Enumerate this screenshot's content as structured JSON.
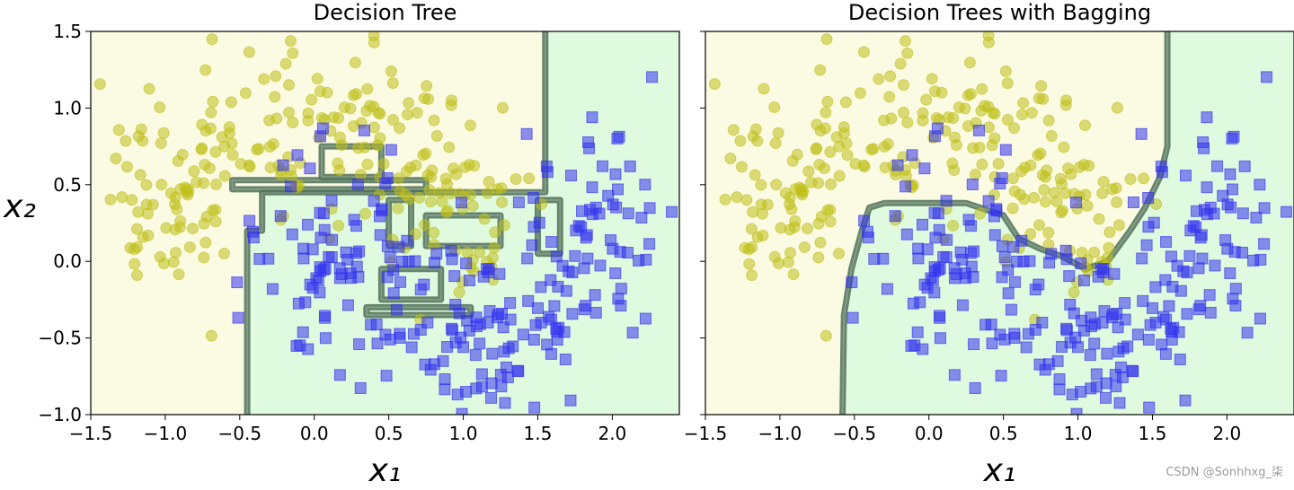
{
  "chart_data": [
    {
      "type": "scatter",
      "title": "Decision Tree",
      "xlabel": "x₁",
      "ylabel": "x₂",
      "xlim": [
        -1.5,
        2.45
      ],
      "ylim": [
        -1.0,
        1.5
      ],
      "xticks": [
        "−1.5",
        "−1.0",
        "−0.5",
        "0.0",
        "0.5",
        "1.0",
        "1.5",
        "2.0"
      ],
      "yticks": [
        "−1.0",
        "−0.5",
        "0.0",
        "0.5",
        "1.0",
        "1.5"
      ],
      "background_colors": {
        "class0": "#fbfbe3",
        "class1": "#e0fae0"
      },
      "series": [
        {
          "class": 0,
          "marker": "circle",
          "color": "#bfbf1a",
          "count": 250
        },
        {
          "class": 1,
          "marker": "square",
          "color": "#3333ee",
          "count": 250
        }
      ],
      "decision_boundary": {
        "color": "#4f6f56",
        "style": "irregular, overfit (single tree)",
        "main_path": [
          [
            -0.45,
            -1.0
          ],
          [
            -0.45,
            0.2
          ],
          [
            -0.35,
            0.2
          ],
          [
            -0.35,
            0.45
          ],
          [
            1.55,
            0.45
          ],
          [
            1.55,
            1.5
          ]
        ],
        "islands": [
          [
            [
              -0.55,
              0.47
            ],
            [
              0.75,
              0.47
            ],
            [
              0.75,
              0.53
            ],
            [
              -0.55,
              0.53
            ]
          ],
          [
            [
              0.05,
              0.55
            ],
            [
              0.45,
              0.55
            ],
            [
              0.45,
              0.75
            ],
            [
              0.05,
              0.75
            ]
          ],
          [
            [
              0.5,
              0.4
            ],
            [
              0.65,
              0.4
            ],
            [
              0.65,
              0.1
            ],
            [
              0.5,
              0.1
            ]
          ],
          [
            [
              0.75,
              0.3
            ],
            [
              1.25,
              0.3
            ],
            [
              1.25,
              0.1
            ],
            [
              0.75,
              0.1
            ]
          ],
          [
            [
              0.45,
              -0.05
            ],
            [
              0.85,
              -0.05
            ],
            [
              0.85,
              -0.25
            ],
            [
              0.45,
              -0.25
            ]
          ],
          [
            [
              0.35,
              -0.3
            ],
            [
              1.05,
              -0.3
            ],
            [
              1.05,
              -0.35
            ],
            [
              0.35,
              -0.35
            ]
          ],
          [
            [
              1.5,
              0.4
            ],
            [
              1.65,
              0.4
            ],
            [
              1.65,
              0.05
            ],
            [
              1.5,
              0.05
            ]
          ]
        ]
      }
    },
    {
      "type": "scatter",
      "title": "Decision Trees with Bagging",
      "xlabel": "x₁",
      "ylabel": "",
      "xlim": [
        -1.5,
        2.45
      ],
      "ylim": [
        -1.0,
        1.5
      ],
      "xticks": [
        "−1.5",
        "−1.0",
        "−0.5",
        "0.0",
        "0.5",
        "1.0",
        "1.5",
        "2.0"
      ],
      "yticks": [],
      "background_colors": {
        "class0": "#fbfbe3",
        "class1": "#e0fae0"
      },
      "series": [
        {
          "class": 0,
          "marker": "circle",
          "color": "#bfbf1a",
          "count": 250
        },
        {
          "class": 1,
          "marker": "square",
          "color": "#3333ee",
          "count": 250
        }
      ],
      "decision_boundary": {
        "color": "#4f6f56",
        "style": "smoother (bagging ensemble)",
        "main_path": [
          [
            -0.58,
            -1.0
          ],
          [
            -0.57,
            -0.35
          ],
          [
            -0.52,
            -0.05
          ],
          [
            -0.45,
            0.2
          ],
          [
            -0.4,
            0.35
          ],
          [
            -0.3,
            0.38
          ],
          [
            0.25,
            0.38
          ],
          [
            0.5,
            0.3
          ],
          [
            0.6,
            0.15
          ],
          [
            0.75,
            0.08
          ],
          [
            0.9,
            0.03
          ],
          [
            1.05,
            -0.05
          ],
          [
            1.2,
            0.0
          ],
          [
            1.35,
            0.2
          ],
          [
            1.45,
            0.35
          ],
          [
            1.55,
            0.55
          ],
          [
            1.6,
            0.75
          ],
          [
            1.6,
            1.5
          ]
        ]
      }
    }
  ],
  "watermark": "CSDN @Sonhhxg_柒"
}
